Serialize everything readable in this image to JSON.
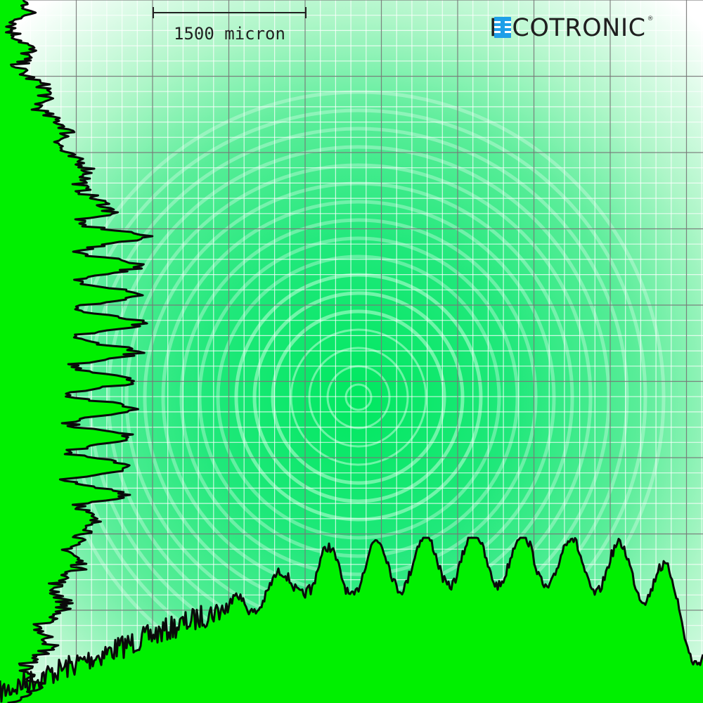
{
  "scale_bar": {
    "label": "1500 micron"
  },
  "brand": {
    "name": "PICOTRONIC",
    "registered_mark": "®",
    "icon": "chip-icon",
    "icon_color": "#1e9fe8"
  },
  "colors": {
    "beam": "#00e850",
    "profile_fill": "#00f000",
    "profile_line": "#0a0a0a",
    "grid_major": "#777777",
    "grid_minor": "#ffffff"
  }
}
